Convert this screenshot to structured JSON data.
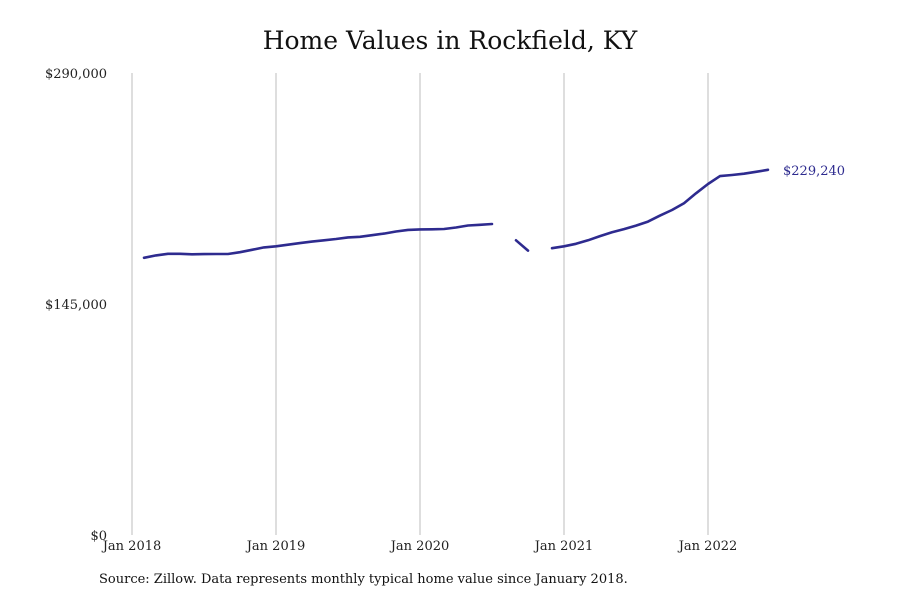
{
  "chart_data": {
    "type": "line",
    "title": "Home Values in Rockfield, KY",
    "xlabel": "",
    "ylabel": "",
    "ylim": [
      0,
      290000
    ],
    "y_ticks": [
      {
        "value": 0,
        "label": "$0"
      },
      {
        "value": 145000,
        "label": "$145,000"
      },
      {
        "value": 290000,
        "label": "$290,000"
      }
    ],
    "x_ticks": [
      {
        "date": "2018-01",
        "label": "Jan 2018"
      },
      {
        "date": "2019-01",
        "label": "Jan 2019"
      },
      {
        "date": "2020-01",
        "label": "Jan 2020"
      },
      {
        "date": "2021-01",
        "label": "Jan 2021"
      },
      {
        "date": "2022-01",
        "label": "Jan 2022"
      }
    ],
    "grid": "vertical",
    "line_color": "#2e2b8f",
    "last_value_label": "$229,240",
    "series": [
      {
        "segments": [
          [
            {
              "date": "2018-02",
              "value": 174000
            },
            {
              "date": "2018-03",
              "value": 175500
            },
            {
              "date": "2018-04",
              "value": 176500
            },
            {
              "date": "2018-05",
              "value": 176500
            },
            {
              "date": "2018-06",
              "value": 176200
            },
            {
              "date": "2018-07",
              "value": 176300
            },
            {
              "date": "2018-08",
              "value": 176400
            },
            {
              "date": "2018-09",
              "value": 176400
            },
            {
              "date": "2018-10",
              "value": 177500
            },
            {
              "date": "2018-11",
              "value": 179000
            },
            {
              "date": "2018-12",
              "value": 180500
            },
            {
              "date": "2019-01",
              "value": 181200
            },
            {
              "date": "2019-02",
              "value": 182200
            },
            {
              "date": "2019-03",
              "value": 183200
            },
            {
              "date": "2019-04",
              "value": 184200
            },
            {
              "date": "2019-05",
              "value": 185000
            },
            {
              "date": "2019-06",
              "value": 185800
            },
            {
              "date": "2019-07",
              "value": 186800
            },
            {
              "date": "2019-08",
              "value": 187200
            },
            {
              "date": "2019-09",
              "value": 188200
            },
            {
              "date": "2019-10",
              "value": 189200
            },
            {
              "date": "2019-11",
              "value": 190500
            },
            {
              "date": "2019-12",
              "value": 191500
            },
            {
              "date": "2020-01",
              "value": 191800
            },
            {
              "date": "2020-02",
              "value": 191900
            },
            {
              "date": "2020-03",
              "value": 192100
            },
            {
              "date": "2020-04",
              "value": 193000
            },
            {
              "date": "2020-05",
              "value": 194300
            },
            {
              "date": "2020-06",
              "value": 194700
            },
            {
              "date": "2020-07",
              "value": 195200
            }
          ],
          [
            {
              "date": "2020-09",
              "value": 185000
            },
            {
              "date": "2020-10",
              "value": 178500
            }
          ],
          [
            {
              "date": "2020-12",
              "value": 180000
            },
            {
              "date": "2021-01",
              "value": 181200
            },
            {
              "date": "2021-02",
              "value": 182800
            },
            {
              "date": "2021-03",
              "value": 185000
            },
            {
              "date": "2021-04",
              "value": 187600
            },
            {
              "date": "2021-05",
              "value": 190000
            },
            {
              "date": "2021-06",
              "value": 192000
            },
            {
              "date": "2021-07",
              "value": 194200
            },
            {
              "date": "2021-08",
              "value": 196700
            },
            {
              "date": "2021-09",
              "value": 200500
            },
            {
              "date": "2021-10",
              "value": 204000
            },
            {
              "date": "2021-11",
              "value": 208300
            },
            {
              "date": "2021-12",
              "value": 214500
            },
            {
              "date": "2022-01",
              "value": 220300
            },
            {
              "date": "2022-02",
              "value": 225300
            },
            {
              "date": "2022-03",
              "value": 226000
            },
            {
              "date": "2022-04",
              "value": 226800
            },
            {
              "date": "2022-05",
              "value": 228000
            },
            {
              "date": "2022-06",
              "value": 229240
            }
          ]
        ]
      }
    ],
    "source_note": "Source: Zillow. Data represents monthly typical home value since January 2018."
  }
}
